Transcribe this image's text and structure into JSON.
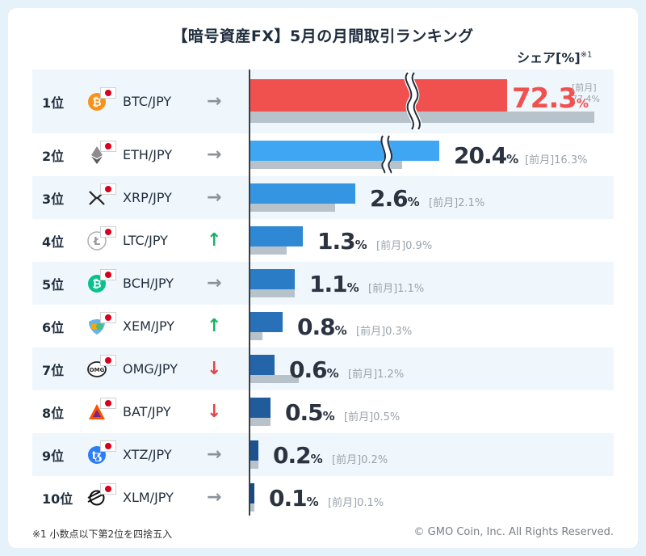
{
  "title": "【暗号資産FX】5月の月間取引ランキング",
  "share_label": "シェア[%]",
  "share_note_mark": "※1",
  "footnote": "※1 小数点以下第2位を四捨五入",
  "copyright": "© GMO Coin, Inc. All Rights Reserved.",
  "prev_month_label": "[前月]",
  "percent_sign": "%",
  "colors": {
    "btc": "#f0514f",
    "eth": "#3ea6f2",
    "xrp": "#3495e2",
    "ltc": "#2f88d4",
    "bch": "#2b7cc6",
    "xem": "#2870b8",
    "omg": "#2465aa",
    "bat": "#205b9c",
    "xtz": "#1c5290",
    "xlm": "#194a84",
    "prev": "#b7c2cb"
  },
  "chart_data": {
    "type": "bar",
    "title": "【暗号資産FX】5月の月間取引ランキング",
    "ylabel": "シェア[%]",
    "axis_break": true,
    "categories": [
      "BTC/JPY",
      "ETH/JPY",
      "XRP/JPY",
      "LTC/JPY",
      "BCH/JPY",
      "XEM/JPY",
      "OMG/JPY",
      "BAT/JPY",
      "XTZ/JPY",
      "XLM/JPY"
    ],
    "series": [
      {
        "name": "5月",
        "values": [
          72.3,
          20.4,
          2.6,
          1.3,
          1.1,
          0.8,
          0.6,
          0.5,
          0.2,
          0.1
        ]
      },
      {
        "name": "[前月]",
        "values": [
          77.4,
          16.3,
          2.1,
          0.9,
          1.1,
          0.3,
          1.2,
          0.5,
          0.2,
          0.1
        ]
      }
    ]
  },
  "rows": [
    {
      "rank": "1位",
      "pair": "BTC/JPY",
      "value": "72.3",
      "prev": "77.4%",
      "trend": "same",
      "arrow": "→",
      "coin": "bitcoin-icon"
    },
    {
      "rank": "2位",
      "pair": "ETH/JPY",
      "value": "20.4",
      "prev": "16.3%",
      "trend": "same",
      "arrow": "→",
      "coin": "ethereum-icon"
    },
    {
      "rank": "3位",
      "pair": "XRP/JPY",
      "value": "2.6",
      "prev": "2.1%",
      "trend": "same",
      "arrow": "→",
      "coin": "ripple-icon"
    },
    {
      "rank": "4位",
      "pair": "LTC/JPY",
      "value": "1.3",
      "prev": "0.9%",
      "trend": "up",
      "arrow": "↑",
      "coin": "litecoin-icon"
    },
    {
      "rank": "5位",
      "pair": "BCH/JPY",
      "value": "1.1",
      "prev": "1.1%",
      "trend": "same",
      "arrow": "→",
      "coin": "bitcoin-cash-icon"
    },
    {
      "rank": "6位",
      "pair": "XEM/JPY",
      "value": "0.8",
      "prev": "0.3%",
      "trend": "up",
      "arrow": "↑",
      "coin": "nem-icon"
    },
    {
      "rank": "7位",
      "pair": "OMG/JPY",
      "value": "0.6",
      "prev": "1.2%",
      "trend": "down",
      "arrow": "↓",
      "coin": "omg-icon"
    },
    {
      "rank": "8位",
      "pair": "BAT/JPY",
      "value": "0.5",
      "prev": "0.5%",
      "trend": "down",
      "arrow": "↓",
      "coin": "bat-icon"
    },
    {
      "rank": "9位",
      "pair": "XTZ/JPY",
      "value": "0.2",
      "prev": "0.2%",
      "trend": "same",
      "arrow": "→",
      "coin": "tezos-icon"
    },
    {
      "rank": "10位",
      "pair": "XLM/JPY",
      "value": "0.1",
      "prev": "0.1%",
      "trend": "same",
      "arrow": "→",
      "coin": "stellar-icon"
    }
  ]
}
